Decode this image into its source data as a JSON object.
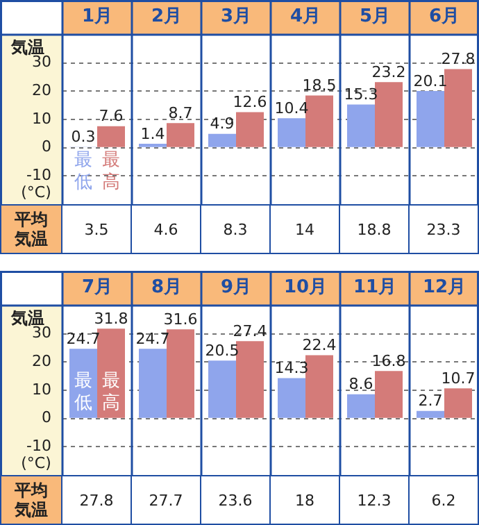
{
  "chart_data": [
    {
      "type": "bar",
      "categories": [
        "1月",
        "2月",
        "3月",
        "4月",
        "5月",
        "6月"
      ],
      "series": [
        {
          "name": "最低",
          "color": "#8fa5ec",
          "values": [
            0.3,
            1.4,
            4.9,
            10.4,
            15.3,
            20.1
          ]
        },
        {
          "name": "最高",
          "color": "#d47b79",
          "values": [
            7.6,
            8.7,
            12.6,
            18.5,
            23.2,
            27.8
          ]
        }
      ],
      "ylabel": "気温",
      "ylim": [
        -20,
        40
      ],
      "yticks": [
        -10,
        0,
        10,
        20,
        30
      ],
      "grid": "y",
      "data_labels": true,
      "legend": false,
      "annotations": [
        "(°C)",
        "平均気温",
        "3.5",
        "4.6",
        "8.3",
        "14",
        "18.8",
        "23.3"
      ]
    },
    {
      "type": "bar",
      "categories": [
        "7月",
        "8月",
        "9月",
        "10月",
        "11月",
        "12月"
      ],
      "series": [
        {
          "name": "最低",
          "color": "#8fa5ec",
          "values": [
            24.7,
            24.7,
            20.5,
            14.3,
            8.6,
            2.7
          ]
        },
        {
          "name": "最高",
          "color": "#d47b79",
          "values": [
            31.8,
            31.6,
            27.4,
            22.4,
            16.8,
            10.7
          ]
        }
      ],
      "ylabel": "気温",
      "ylim": [
        -20,
        40
      ],
      "yticks": [
        -10,
        0,
        10,
        20,
        30
      ],
      "grid": "y",
      "data_labels": true,
      "legend": false,
      "annotations": [
        "(°C)",
        "平均気温",
        "27.8",
        "27.7",
        "23.6",
        "18",
        "12.3",
        "6.2"
      ]
    }
  ]
}
